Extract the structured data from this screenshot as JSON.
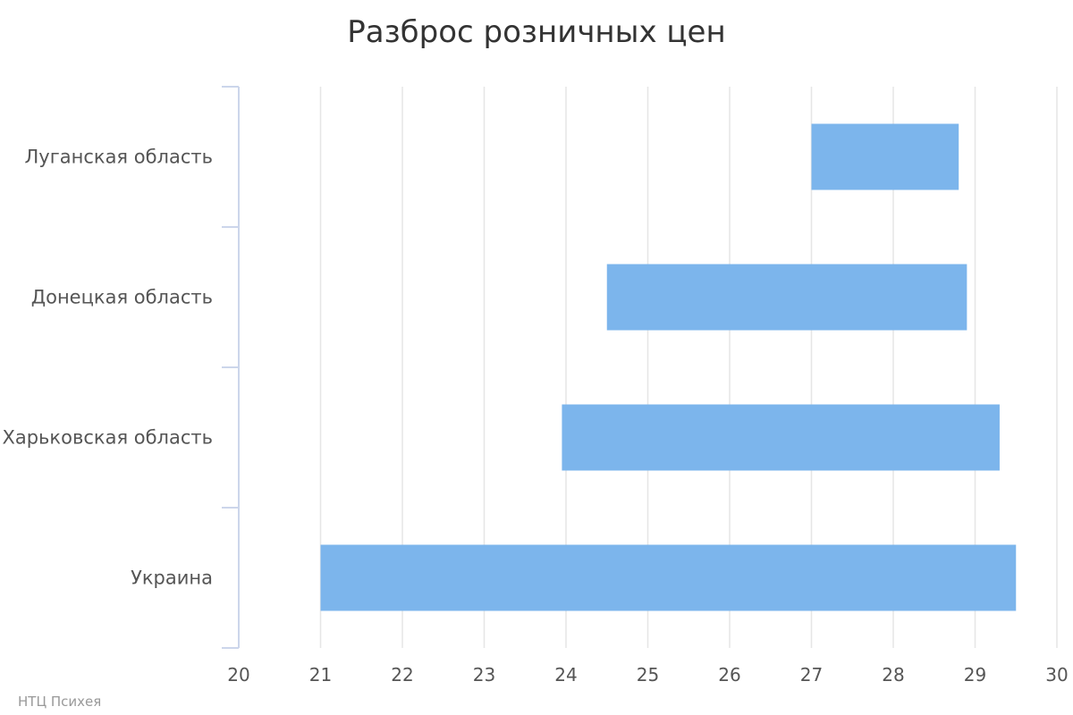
{
  "chart_data": {
    "type": "bar",
    "orientation": "horizontal",
    "subtype": "range",
    "title": "Разброс розничных цен",
    "categories": [
      "Луганская область",
      "Донецкая область",
      "Харьковская область",
      "Украина"
    ],
    "series": [
      {
        "low": [
          27.0,
          24.5,
          23.95,
          21.0
        ],
        "high": [
          28.8,
          28.9,
          29.3,
          29.5
        ]
      }
    ],
    "xlim": [
      20,
      30
    ],
    "xticks": [
      "20",
      "21",
      "22",
      "23",
      "24",
      "25",
      "26",
      "27",
      "28",
      "29",
      "30"
    ],
    "grid": true,
    "legend": "none",
    "colors": {
      "bar": "#7cb5ec",
      "grid": "#e6e6e6",
      "axis": "#ccd6eb"
    }
  },
  "credits": "НТЦ Психея"
}
